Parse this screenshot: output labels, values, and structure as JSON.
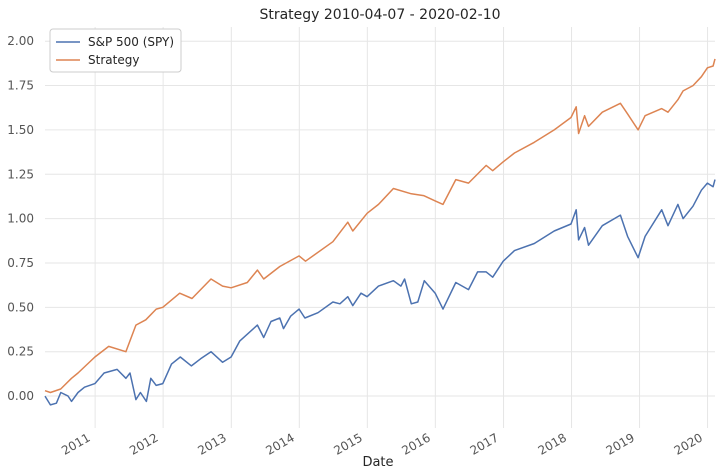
{
  "chart_data": {
    "type": "line",
    "title": "Strategy 2010-04-07 - 2020-02-10",
    "xlabel": "Date",
    "ylabel": "",
    "xlim": [
      "2010-04-07",
      "2020-02-10"
    ],
    "ylim": [
      -0.18,
      2.08
    ],
    "y_ticks": [
      0.0,
      0.25,
      0.5,
      0.75,
      1.0,
      1.25,
      1.5,
      1.75,
      2.0
    ],
    "y_tick_labels": [
      "0.00",
      "0.25",
      "0.50",
      "0.75",
      "1.00",
      "1.25",
      "1.50",
      "1.75",
      "2.00"
    ],
    "x_ticks": [
      "2011-01-01",
      "2012-01-01",
      "2013-01-01",
      "2014-01-01",
      "2015-01-01",
      "2016-01-01",
      "2017-01-01",
      "2018-01-01",
      "2019-01-01",
      "2020-01-01"
    ],
    "x_tick_labels": [
      "2011",
      "2012",
      "2013",
      "2014",
      "2015",
      "2016",
      "2017",
      "2018",
      "2019",
      "2020"
    ],
    "grid": true,
    "legend_position": "top-left",
    "series": [
      {
        "name": "S&P 500 (SPY)",
        "color": "#4c72b0",
        "x": [
          "2010-04-07",
          "2010-05-06",
          "2010-06-07",
          "2010-07-01",
          "2010-08-09",
          "2010-08-27",
          "2010-10-01",
          "2010-11-05",
          "2010-12-31",
          "2011-02-18",
          "2011-04-29",
          "2011-06-15",
          "2011-07-07",
          "2011-08-08",
          "2011-09-01",
          "2011-10-03",
          "2011-10-27",
          "2011-11-25",
          "2011-12-30",
          "2012-02-15",
          "2012-04-02",
          "2012-06-01",
          "2012-07-20",
          "2012-09-14",
          "2012-11-15",
          "2012-12-31",
          "2013-02-15",
          "2013-05-21",
          "2013-06-24",
          "2013-08-02",
          "2013-09-18",
          "2013-10-08",
          "2013-11-15",
          "2013-12-31",
          "2014-01-31",
          "2014-04-11",
          "2014-06-30",
          "2014-08-07",
          "2014-09-18",
          "2014-10-15",
          "2014-11-28",
          "2014-12-31",
          "2015-03-02",
          "2015-05-21",
          "2015-06-30",
          "2015-07-20",
          "2015-08-25",
          "2015-09-29",
          "2015-11-03",
          "2015-12-31",
          "2016-02-11",
          "2016-04-20",
          "2016-06-27",
          "2016-08-15",
          "2016-09-30",
          "2016-11-04",
          "2016-12-30",
          "2017-03-01",
          "2017-06-15",
          "2017-09-30",
          "2017-12-29",
          "2018-01-26",
          "2018-02-08",
          "2018-03-12",
          "2018-04-02",
          "2018-06-15",
          "2018-09-20",
          "2018-10-29",
          "2018-12-24",
          "2019-01-31",
          "2019-04-30",
          "2019-06-03",
          "2019-07-26",
          "2019-08-23",
          "2019-10-15",
          "2019-11-29",
          "2019-12-31",
          "2020-01-31",
          "2020-02-10"
        ],
        "values": [
          0.0,
          -0.05,
          -0.04,
          0.02,
          0.0,
          -0.03,
          0.02,
          0.05,
          0.07,
          0.13,
          0.15,
          0.1,
          0.13,
          -0.02,
          0.02,
          -0.03,
          0.1,
          0.06,
          0.07,
          0.18,
          0.22,
          0.17,
          0.21,
          0.25,
          0.19,
          0.22,
          0.31,
          0.4,
          0.33,
          0.42,
          0.44,
          0.38,
          0.45,
          0.49,
          0.44,
          0.47,
          0.53,
          0.52,
          0.56,
          0.51,
          0.58,
          0.56,
          0.62,
          0.65,
          0.62,
          0.66,
          0.52,
          0.53,
          0.65,
          0.58,
          0.49,
          0.64,
          0.6,
          0.7,
          0.7,
          0.67,
          0.76,
          0.82,
          0.86,
          0.93,
          0.97,
          1.05,
          0.88,
          0.95,
          0.85,
          0.96,
          1.02,
          0.9,
          0.78,
          0.9,
          1.05,
          0.96,
          1.08,
          1.0,
          1.07,
          1.16,
          1.2,
          1.18,
          1.22
        ]
      },
      {
        "name": "Strategy",
        "color": "#dd8452",
        "x": [
          "2010-04-07",
          "2010-05-06",
          "2010-06-30",
          "2010-08-27",
          "2010-10-01",
          "2010-12-31",
          "2011-03-15",
          "2011-06-15",
          "2011-08-08",
          "2011-09-30",
          "2011-11-25",
          "2011-12-30",
          "2012-03-30",
          "2012-06-04",
          "2012-09-14",
          "2012-11-15",
          "2012-12-31",
          "2013-03-28",
          "2013-05-21",
          "2013-06-24",
          "2013-09-18",
          "2013-12-31",
          "2014-02-03",
          "2014-06-30",
          "2014-09-18",
          "2014-10-15",
          "2014-12-31",
          "2015-03-02",
          "2015-05-21",
          "2015-08-25",
          "2015-10-30",
          "2015-12-31",
          "2016-02-11",
          "2016-04-20",
          "2016-06-27",
          "2016-09-30",
          "2016-11-04",
          "2016-12-30",
          "2017-03-01",
          "2017-06-15",
          "2017-09-30",
          "2017-12-29",
          "2018-01-26",
          "2018-02-08",
          "2018-03-12",
          "2018-04-02",
          "2018-06-15",
          "2018-09-20",
          "2018-10-29",
          "2018-12-24",
          "2019-01-31",
          "2019-04-30",
          "2019-06-03",
          "2019-07-26",
          "2019-08-23",
          "2019-10-15",
          "2019-11-29",
          "2019-12-31",
          "2020-01-31",
          "2020-02-10"
        ],
        "values": [
          0.03,
          0.02,
          0.04,
          0.1,
          0.13,
          0.22,
          0.28,
          0.25,
          0.4,
          0.43,
          0.49,
          0.5,
          0.58,
          0.55,
          0.66,
          0.62,
          0.61,
          0.64,
          0.71,
          0.66,
          0.73,
          0.79,
          0.76,
          0.87,
          0.98,
          0.93,
          1.03,
          1.08,
          1.17,
          1.14,
          1.13,
          1.1,
          1.08,
          1.22,
          1.2,
          1.3,
          1.27,
          1.32,
          1.37,
          1.43,
          1.5,
          1.57,
          1.63,
          1.48,
          1.58,
          1.52,
          1.6,
          1.65,
          1.59,
          1.5,
          1.58,
          1.62,
          1.6,
          1.67,
          1.72,
          1.75,
          1.8,
          1.85,
          1.86,
          1.9
        ]
      }
    ]
  }
}
